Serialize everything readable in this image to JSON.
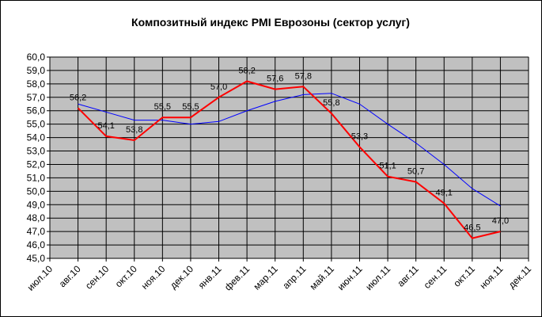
{
  "chart_data": {
    "type": "line",
    "title": "Композитный индекс PMI Еврозоны (сектор услуг)",
    "categories": [
      "июл.10",
      "авг.10",
      "сен.10",
      "окт.10",
      "ноя.10",
      "дек.10",
      "янв.11",
      "фев.11",
      "мар.11",
      "апр.11",
      "май.11",
      "июн.11",
      "июл.11",
      "авг.11",
      "сен.11",
      "окт.11",
      "ноя.11",
      "дек.11"
    ],
    "series": [
      {
        "color": "#0000ff",
        "values": [
          null,
          56.5,
          55.9,
          55.3,
          55.3,
          55.0,
          55.2,
          56.0,
          56.7,
          57.2,
          57.3,
          56.5,
          55.0,
          53.6,
          52.0,
          50.2,
          48.9,
          null
        ]
      },
      {
        "color": "#ff0000",
        "values": [
          null,
          56.2,
          54.1,
          53.8,
          55.5,
          55.5,
          57.0,
          58.2,
          57.6,
          57.8,
          55.8,
          53.3,
          51.1,
          50.7,
          49.1,
          46.5,
          47.0,
          null
        ],
        "value_labels": [
          null,
          "56,2",
          "54,1",
          "53,8",
          "55,5",
          "55,5",
          "57,0",
          "58,2",
          "57,6",
          "57,8",
          "55,8",
          "53,3",
          "51,1",
          "50,7",
          "49,1",
          "46,5",
          "47,0",
          null
        ]
      }
    ],
    "ylim": [
      45,
      60
    ],
    "yticks": [
      {
        "value": 45,
        "label": "45,0"
      },
      {
        "value": 46,
        "label": "46,0"
      },
      {
        "value": 47,
        "label": "47,0"
      },
      {
        "value": 48,
        "label": "48,0"
      },
      {
        "value": 49,
        "label": "49,0"
      },
      {
        "value": 50,
        "label": "50,0"
      },
      {
        "value": 51,
        "label": "51,0"
      },
      {
        "value": 52,
        "label": "52,0"
      },
      {
        "value": 53,
        "label": "53,0"
      },
      {
        "value": 54,
        "label": "54,0"
      },
      {
        "value": 55,
        "label": "55,0"
      },
      {
        "value": 56,
        "label": "56,0"
      },
      {
        "value": 57,
        "label": "57,0"
      },
      {
        "value": 58,
        "label": "58,0"
      },
      {
        "value": 59,
        "label": "59,0"
      },
      {
        "value": 60,
        "label": "60,0"
      }
    ],
    "grid": true,
    "plot_background": "#c0c0c0"
  }
}
